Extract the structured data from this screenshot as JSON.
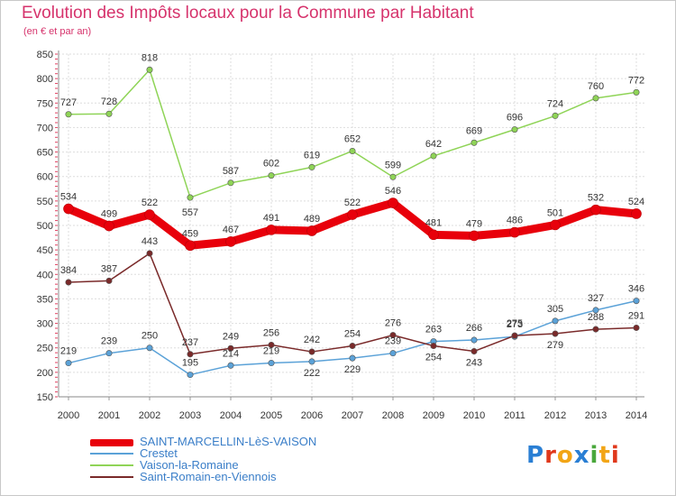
{
  "title": "Evolution des Impôts locaux pour la Commune par Habitant",
  "subtitle": "(en € et par an)",
  "logo": {
    "text": "Proxiti",
    "colors": [
      "#2a7fd4",
      "#e0381c",
      "#f2a516",
      "#2a7fd4",
      "#4aa83c",
      "#f2a516",
      "#e0381c"
    ]
  },
  "chart_data": {
    "type": "line",
    "title": "Evolution des Impôts locaux pour la Commune par Habitant",
    "ylabel": "(en € et par an)",
    "categories": [
      "2000",
      "2001",
      "2002",
      "2003",
      "2004",
      "2005",
      "2006",
      "2007",
      "2008",
      "2009",
      "2010",
      "2011",
      "2012",
      "2013",
      "2014"
    ],
    "ylim": [
      150,
      850
    ],
    "yticks": [
      "150",
      "200",
      "250",
      "300",
      "350",
      "400",
      "450",
      "500",
      "550",
      "600",
      "650",
      "700",
      "750",
      "800",
      "850"
    ],
    "grid": true,
    "series": [
      {
        "name": "SAINT-MARCELLIN-LèS-VAISON",
        "color": "#e8000b",
        "values": [
          534,
          499,
          522,
          459,
          467,
          491,
          489,
          522,
          546,
          481,
          479,
          486,
          501,
          532,
          524
        ],
        "labels": [
          "534",
          "499",
          "522",
          "459",
          "467",
          "491",
          "489",
          "522",
          "546",
          "481",
          "479",
          "486",
          "501",
          "532",
          "524"
        ]
      },
      {
        "name": "Crestet",
        "color": "#5ba2d8",
        "values": [
          219,
          239,
          250,
          195,
          214,
          219,
          222,
          229,
          239,
          263,
          266,
          273,
          305,
          327,
          346
        ],
        "labels": [
          "219",
          "239",
          "250",
          "195",
          "214",
          "219",
          "222",
          "229",
          "239",
          "263",
          "266",
          "273",
          "305",
          "327",
          "346"
        ]
      },
      {
        "name": "Vaison-la-Romaine",
        "color": "#8fd457",
        "values": [
          727,
          728,
          818,
          557,
          587,
          602,
          619,
          652,
          599,
          642,
          669,
          696,
          724,
          760,
          772
        ],
        "labels": [
          "727",
          "728",
          "818",
          "557",
          "587",
          "602",
          "619",
          "652",
          "599",
          "642",
          "669",
          "696",
          "724",
          "760",
          "772"
        ]
      },
      {
        "name": "Saint-Romain-en-Viennois",
        "color": "#7a2a2a",
        "values": [
          384,
          387,
          443,
          237,
          249,
          256,
          242,
          254,
          276,
          254,
          243,
          275,
          279,
          288,
          291
        ],
        "labels": [
          "384",
          "387",
          "443",
          "237",
          "249",
          "256",
          "242",
          "254",
          "276",
          "254",
          "243",
          "275",
          "279",
          "288",
          "291"
        ]
      }
    ]
  }
}
